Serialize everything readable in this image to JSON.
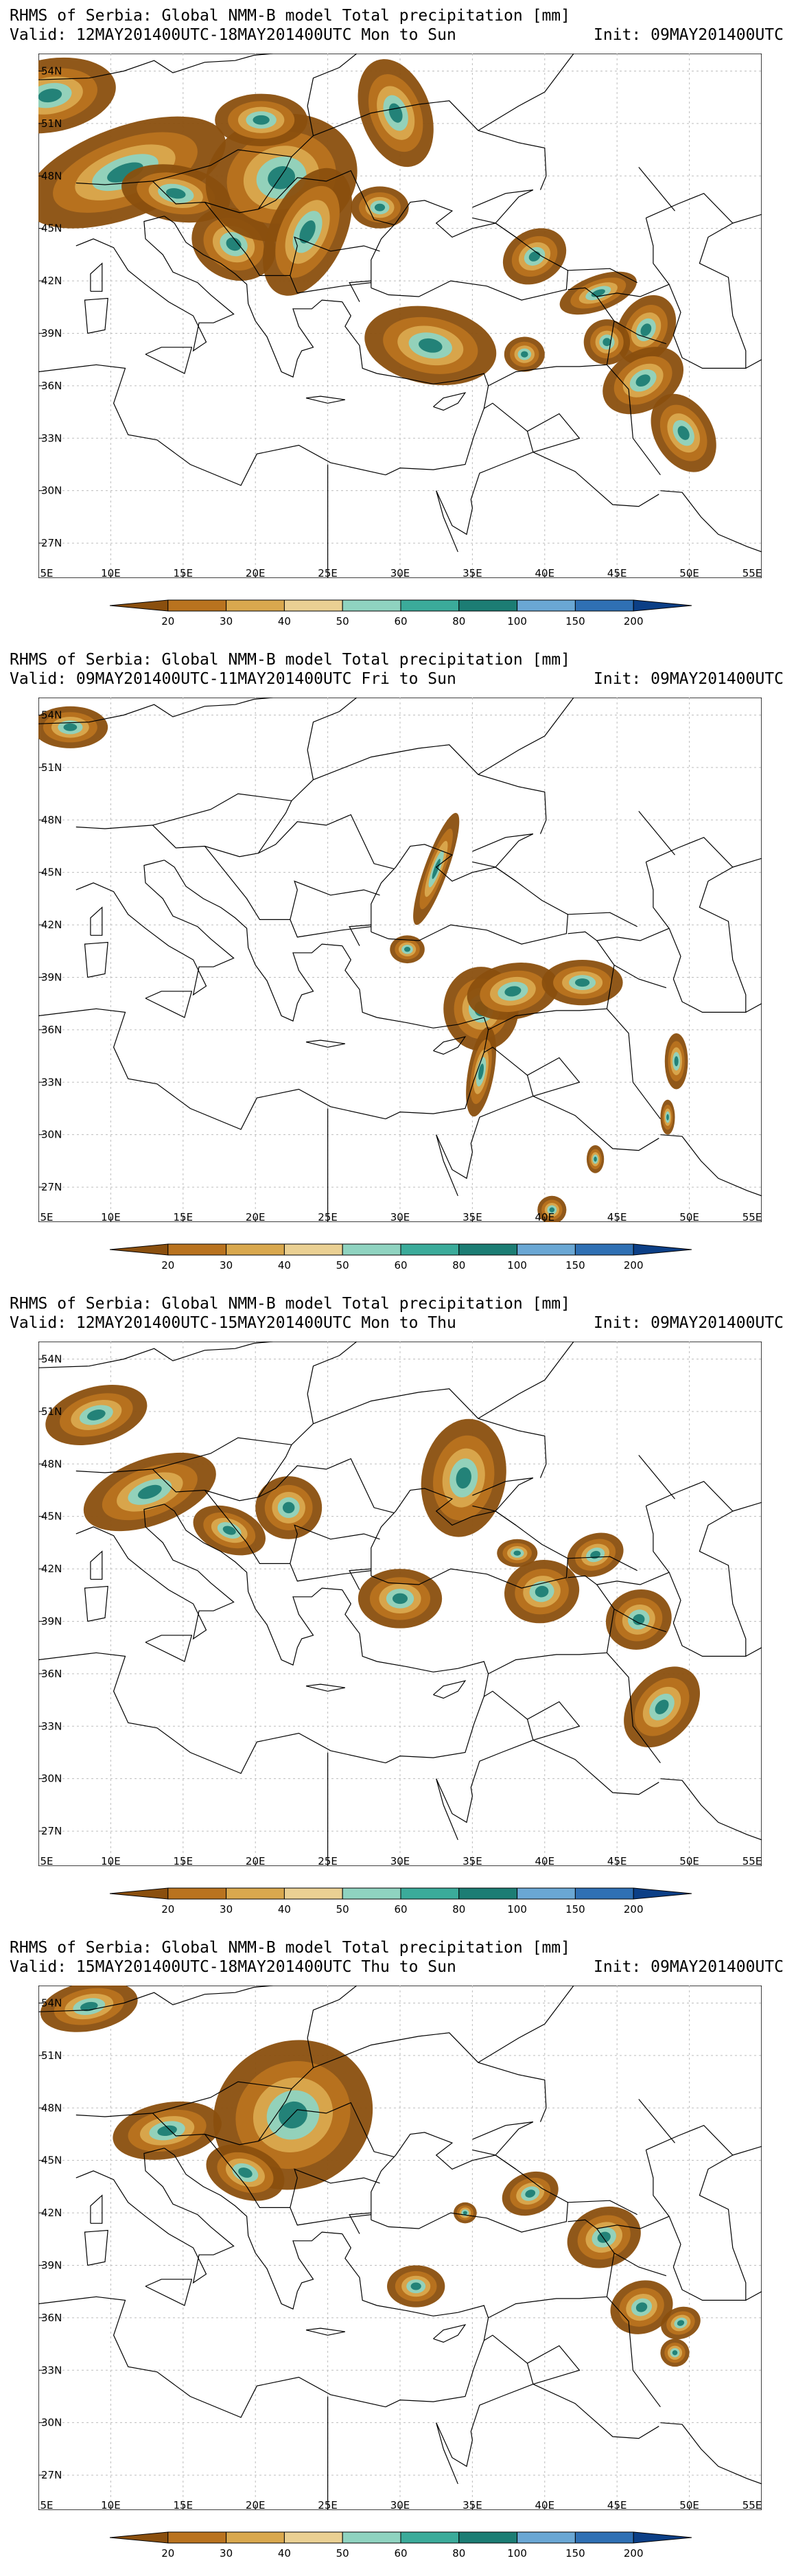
{
  "panels": [
    {
      "title": "RHMS of Serbia: Global NMM-B model Total precipitation [mm]",
      "valid": "Valid: 12MAY201400UTC-18MAY201400UTC Mon to Sun",
      "init": "Init: 09MAY201400UTC"
    },
    {
      "title": "RHMS of Serbia: Global NMM-B model Total precipitation [mm]",
      "valid": "Valid: 09MAY201400UTC-11MAY201400UTC Fri to Sun",
      "init": "Init: 09MAY201400UTC"
    },
    {
      "title": "RHMS of Serbia: Global NMM-B model Total precipitation [mm]",
      "valid": "Valid: 12MAY201400UTC-15MAY201400UTC Mon to Thu",
      "init": "Init: 09MAY201400UTC"
    },
    {
      "title": "RHMS of Serbia: Global NMM-B model Total precipitation [mm]",
      "valid": "Valid: 15MAY201400UTC-18MAY201400UTC Thu to Sun",
      "init": "Init: 09MAY201400UTC"
    }
  ],
  "lon_labels": [
    "5E",
    "10E",
    "15E",
    "20E",
    "25E",
    "30E",
    "35E",
    "40E",
    "45E",
    "50E",
    "55E"
  ],
  "lat_labels": [
    "54N",
    "51N",
    "48N",
    "45N",
    "42N",
    "39N",
    "36N",
    "33N",
    "30N",
    "27N"
  ],
  "legend": {
    "values": [
      "20",
      "30",
      "40",
      "50",
      "60",
      "80",
      "100",
      "150",
      "200"
    ],
    "colors": [
      "#8a4f0e",
      "#b9731f",
      "#d9a84e",
      "#ead093",
      "#8fd3c0",
      "#3bab9a",
      "#1c7d74",
      "#6aa7d4",
      "#2f70b4",
      "#0c3f86"
    ]
  }
}
